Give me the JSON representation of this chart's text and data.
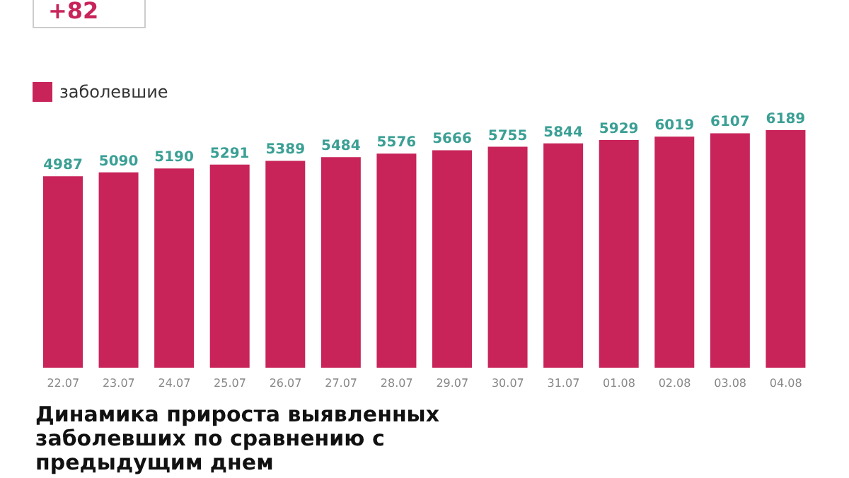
{
  "chart_data": {
    "type": "bar",
    "title": "Динамика прироста выявленных заболевших по сравнению с предыдущим днем",
    "annotations": [
      "+82"
    ],
    "categories": [
      "22.07",
      "23.07",
      "24.07",
      "25.07",
      "26.07",
      "27.07",
      "28.07",
      "29.07",
      "30.07",
      "31.07",
      "01.08",
      "02.08",
      "03.08",
      "04.08"
    ],
    "series": [
      {
        "name": "заболевшие",
        "color": "#c8245a",
        "values": [
          4987,
          5090,
          5190,
          5291,
          5389,
          5484,
          5576,
          5666,
          5755,
          5844,
          5929,
          6019,
          6107,
          6189
        ]
      }
    ],
    "data_labels": true,
    "legend": "top left",
    "tick_labels": "x"
  }
}
